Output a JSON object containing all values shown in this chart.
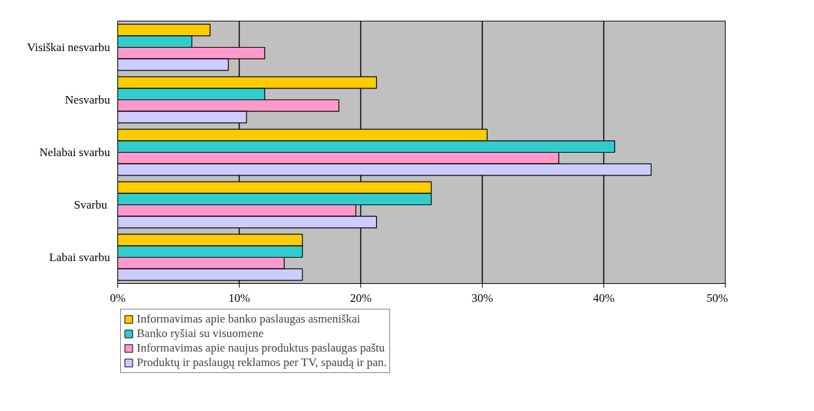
{
  "chart_data": {
    "type": "bar",
    "orientation": "horizontal",
    "categories": [
      "Visiškai nesvarbu",
      "Nesvarbu",
      "Nelabai svarbu",
      "Svarbu ",
      "Labai svarbu"
    ],
    "series": [
      {
        "name": "Informavimas apie banko paslaugas asmeniškai",
        "color": "#ffcc00",
        "values": [
          7.6,
          21.3,
          30.4,
          25.8,
          15.2
        ]
      },
      {
        "name": "Banko ryšiai su visuomene",
        "color": "#33cccc",
        "values": [
          6.1,
          12.1,
          40.9,
          25.8,
          15.2
        ]
      },
      {
        "name": "Informavimas apie naujus produktus paslaugas paštu",
        "color": "#ff99cc",
        "values": [
          12.1,
          18.2,
          36.3,
          19.6,
          13.7
        ]
      },
      {
        "name": "Produktų ir paslaugų reklamos per TV, spaudą ir pan.",
        "color": "#ccccff",
        "values": [
          9.1,
          10.6,
          43.9,
          21.3,
          15.2
        ]
      }
    ],
    "xlim": [
      0,
      50
    ],
    "xticks": [
      {
        "value": 0,
        "label": "0%"
      },
      {
        "value": 10,
        "label": "10%"
      },
      {
        "value": 20,
        "label": "20%"
      },
      {
        "value": 30,
        "label": "30%"
      },
      {
        "value": 40,
        "label": "40%"
      },
      {
        "value": 50,
        "label": "50%"
      }
    ],
    "grid": "x",
    "legend": "bottom"
  }
}
